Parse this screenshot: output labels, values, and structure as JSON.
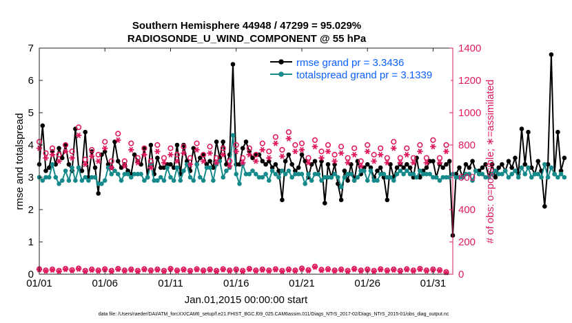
{
  "colors": {
    "rmse": "#000000",
    "spread": "#168a8a",
    "obs": "#e0185f",
    "legend_text": "#0b5fff",
    "axis": "#222222"
  },
  "icons": {
    "rmse_marker": "filled-circle-marker",
    "spread_marker": "filled-circle-marker",
    "possible_marker": "open-circle-marker",
    "assimilated_marker": "asterisk-marker"
  },
  "chart_data": {
    "type": "line",
    "title": "Southern Hemisphere 44948 / 47299 = 95.029%",
    "subtitle": "RADIOSONDE_U_WIND_COMPONENT @ 55 hPa",
    "xlabel": "Jan.01,2015 00:00:00 start",
    "ylabel_left": "rmse and totalspread",
    "ylabel_right": "# of obs: o=possible; ∗=assimilated",
    "xlim": [
      1,
      32.5
    ],
    "ylim_left": [
      0,
      7
    ],
    "ylim_right": [
      0,
      1400
    ],
    "x_ticks": [
      1,
      6,
      11,
      16,
      21,
      26,
      31
    ],
    "x_tick_labels": [
      "01/01",
      "01/06",
      "01/11",
      "01/16",
      "01/21",
      "01/26",
      "01/31"
    ],
    "y_ticks_left": [
      "0",
      "1",
      "2",
      "3",
      "4",
      "5",
      "6",
      "7"
    ],
    "y_ticks_right": [
      "0",
      "200",
      "400",
      "600",
      "800",
      "1000",
      "1200",
      "1400"
    ],
    "grid": false,
    "legend_position": "top-right",
    "legend": [
      {
        "name": "rmse",
        "label": "rmse grand pr = 3.3436"
      },
      {
        "name": "totalspread",
        "label": "totalspread grand pr = 3.1339"
      }
    ],
    "series": [
      {
        "name": "rmse",
        "axis": "left",
        "start_day": 1.0,
        "step_days": 0.25,
        "values": [
          3.4,
          4.6,
          3.2,
          3.3,
          3.8,
          3.4,
          3.9,
          3.6,
          4.0,
          3.4,
          3.2,
          4.5,
          3.3,
          3.2,
          4.4,
          3.0,
          3.8,
          3.3,
          2.5,
          3.7,
          3.8,
          3.4,
          3.3,
          4.1,
          3.5,
          3.3,
          3.4,
          3.2,
          3.1,
          3.7,
          3.5,
          3.4,
          3.9,
          3.0,
          4.0,
          3.1,
          3.6,
          3.3,
          3.3,
          3.4,
          3.4,
          3.3,
          4.0,
          3.1,
          4.0,
          3.5,
          3.2,
          3.9,
          3.4,
          3.6,
          3.7,
          3.4,
          3.5,
          3.3,
          4.1,
          3.6,
          4.1,
          3.4,
          3.7,
          6.5,
          3.4,
          3.4,
          3.9,
          4.1,
          3.8,
          3.6,
          3.7,
          3.7,
          3.5,
          3.4,
          3.5,
          3.3,
          3.4,
          3.2,
          2.3,
          3.5,
          3.7,
          3.4,
          3.2,
          3.3,
          3.7,
          3.5,
          3.0,
          3.4,
          3.5,
          3.1,
          3.5,
          2.2,
          3.4,
          3.0,
          3.4,
          2.8,
          2.3,
          3.2,
          2.9,
          3.4,
          2.9,
          3.5,
          3.1,
          3.3,
          3.4,
          3.3,
          3.0,
          3.2,
          3.3,
          3.0,
          2.3,
          3.4,
          3.0,
          3.3,
          3.4,
          3.3,
          3.4,
          3.3,
          3.0,
          3.6,
          3.0,
          3.2,
          3.3,
          3.5,
          3.5,
          3.0,
          3.4,
          3.3,
          3.4,
          3.5,
          1.2,
          3.1,
          3.3,
          3.0,
          3.4,
          3.3,
          3.5,
          3.2,
          3.2,
          3.3,
          3.4,
          3.0,
          3.4,
          3.0,
          3.3,
          3.4,
          3.2,
          3.5,
          3.3,
          3.6,
          3.1,
          4.5,
          3.4,
          4.4,
          3.3,
          3.1,
          3.5,
          3.2,
          2.1,
          3.4,
          6.8,
          3.1,
          4.4,
          3.2,
          3.6
        ]
      },
      {
        "name": "totalspread",
        "axis": "left",
        "start_day": 1.0,
        "step_days": 0.25,
        "values": [
          3.0,
          2.9,
          3.0,
          3.0,
          3.4,
          3.0,
          2.8,
          2.9,
          3.2,
          2.9,
          3.3,
          2.9,
          3.3,
          2.9,
          3.0,
          2.9,
          3.0,
          3.0,
          2.8,
          2.8,
          2.9,
          3.3,
          3.1,
          3.2,
          3.1,
          2.9,
          3.1,
          3.1,
          3.0,
          3.1,
          3.1,
          3.1,
          2.9,
          3.0,
          3.4,
          2.9,
          2.9,
          3.0,
          2.9,
          3.3,
          3.0,
          2.9,
          3.3,
          2.9,
          3.2,
          3.4,
          3.0,
          2.9,
          3.4,
          3.0,
          2.9,
          3.3,
          3.3,
          2.9,
          3.4,
          3.5,
          3.0,
          3.2,
          3.3,
          4.3,
          3.1,
          2.8,
          3.4,
          3.1,
          3.1,
          3.2,
          3.1,
          3.0,
          3.0,
          3.1,
          2.9,
          3.2,
          3.1,
          3.0,
          3.2,
          3.1,
          3.2,
          3.0,
          3.1,
          3.1,
          3.1,
          2.8,
          3.1,
          2.9,
          3.1,
          3.1,
          2.9,
          3.0,
          3.0,
          3.0,
          3.1,
          3.0,
          2.7,
          3.0,
          3.1,
          3.1,
          2.9,
          3.0,
          3.2,
          3.2,
          2.9,
          3.2,
          2.9,
          2.9,
          3.1,
          3.1,
          3.0,
          3.0,
          2.9,
          3.1,
          3.2,
          3.1,
          3.2,
          3.1,
          3.1,
          3.0,
          3.2,
          3.1,
          3.1,
          3.1,
          3.0,
          3.0,
          2.9,
          3.0,
          3.0,
          3.0,
          3.1,
          3.0,
          3.0,
          3.0,
          3.1,
          3.1,
          2.9,
          3.2,
          3.1,
          3.1,
          3.0,
          3.0,
          3.1,
          3.2,
          3.1,
          3.1,
          3.2,
          3.0,
          3.1,
          3.2,
          3.0,
          3.3,
          3.1,
          3.3,
          3.0,
          3.1,
          3.1,
          3.0,
          3.4,
          3.0,
          3.3,
          3.1,
          3.0,
          3.1,
          3.0
        ]
      },
      {
        "name": "possible",
        "axis": "right",
        "marker": "open-circle",
        "x": [
          1.0,
          1.5,
          2.0,
          2.5,
          3.0,
          3.5,
          4.0,
          4.5,
          5.0,
          5.5,
          6.0,
          6.5,
          7.0,
          7.5,
          8.0,
          8.5,
          9.0,
          9.5,
          10.0,
          10.5,
          11.0,
          11.5,
          12.0,
          12.5,
          13.0,
          13.5,
          14.0,
          14.5,
          15.0,
          15.5,
          16.0,
          16.5,
          17.0,
          17.5,
          18.0,
          18.5,
          19.0,
          19.5,
          20.0,
          20.5,
          21.0,
          21.5,
          22.0,
          22.5,
          23.0,
          23.5,
          24.0,
          24.5,
          25.0,
          25.5,
          26.0,
          26.5,
          27.0,
          27.5,
          28.0,
          28.5,
          29.0,
          29.5,
          30.0,
          30.5,
          31.0,
          31.5,
          32.0
        ],
        "values": [
          820,
          750,
          780,
          740,
          800,
          760,
          910,
          710,
          770,
          740,
          820,
          700,
          870,
          700,
          810,
          720,
          780,
          700,
          800,
          720,
          780,
          740,
          790,
          720,
          810,
          740,
          790,
          720,
          780,
          700,
          800,
          720,
          780,
          740,
          810,
          760,
          850,
          770,
          880,
          800,
          810,
          720,
          830,
          760,
          800,
          740,
          790,
          720,
          780,
          700,
          800,
          740,
          780,
          720,
          820,
          720,
          780,
          720,
          800,
          720,
          830,
          720,
          800
        ]
      },
      {
        "name": "assimilated",
        "axis": "right",
        "marker": "asterisk",
        "x": [
          1.0,
          1.5,
          2.0,
          2.5,
          3.0,
          3.5,
          4.0,
          4.5,
          5.0,
          5.5,
          6.0,
          6.5,
          7.0,
          7.5,
          8.0,
          8.5,
          9.0,
          9.5,
          10.0,
          10.5,
          11.0,
          11.5,
          12.0,
          12.5,
          13.0,
          13.5,
          14.0,
          14.5,
          15.0,
          15.5,
          16.0,
          16.5,
          17.0,
          17.5,
          18.0,
          18.5,
          19.0,
          19.5,
          20.0,
          20.5,
          21.0,
          21.5,
          22.0,
          22.5,
          23.0,
          23.5,
          24.0,
          24.5,
          25.0,
          25.5,
          26.0,
          26.5,
          27.0,
          27.5,
          28.0,
          28.5,
          29.0,
          29.5,
          30.0,
          30.5,
          31.0,
          31.5,
          32.0
        ],
        "values": [
          780,
          720,
          740,
          700,
          760,
          720,
          860,
          680,
          730,
          700,
          780,
          660,
          830,
          670,
          770,
          690,
          740,
          660,
          760,
          690,
          740,
          700,
          750,
          680,
          770,
          700,
          750,
          690,
          740,
          670,
          760,
          690,
          740,
          700,
          770,
          720,
          810,
          730,
          840,
          760,
          770,
          690,
          790,
          720,
          760,
          700,
          750,
          690,
          740,
          670,
          760,
          700,
          740,
          690,
          780,
          690,
          740,
          690,
          760,
          690,
          790,
          690,
          760
        ]
      },
      {
        "name": "bottom-possible",
        "axis": "right",
        "marker": "open-circle",
        "x": [
          1.0,
          1.5,
          2.0,
          2.5,
          3.0,
          3.5,
          4.0,
          4.5,
          5.0,
          5.5,
          6.0,
          6.5,
          7.0,
          7.5,
          8.0,
          8.5,
          9.0,
          9.5,
          10.0,
          10.5,
          11.0,
          11.5,
          12.0,
          12.5,
          13.0,
          13.5,
          14.0,
          14.5,
          15.0,
          15.5,
          16.0,
          16.5,
          17.0,
          17.5,
          18.0,
          18.5,
          19.0,
          19.5,
          20.0,
          20.5,
          21.0,
          21.5,
          22.0,
          22.5,
          23.0,
          23.5,
          24.0,
          24.5,
          25.0,
          25.5,
          26.0,
          26.5,
          27.0,
          27.5,
          28.0,
          28.5,
          29.0,
          29.5,
          30.0,
          30.5,
          31.0,
          31.5,
          32.0
        ],
        "values": [
          32,
          24,
          30,
          22,
          34,
          26,
          36,
          22,
          30,
          24,
          32,
          22,
          34,
          24,
          30,
          22,
          32,
          24,
          30,
          22,
          34,
          24,
          30,
          22,
          32,
          24,
          30,
          22,
          32,
          24,
          30,
          22,
          34,
          24,
          30,
          24,
          32,
          22,
          30,
          24,
          36,
          26,
          48,
          28,
          32,
          24,
          30,
          22,
          34,
          24,
          30,
          22,
          32,
          24,
          30,
          22,
          32,
          24,
          34,
          24,
          30,
          26,
          14
        ]
      },
      {
        "name": "bottom-assimilated",
        "axis": "right",
        "marker": "asterisk",
        "x": [
          1.0,
          1.5,
          2.0,
          2.5,
          3.0,
          3.5,
          4.0,
          4.5,
          5.0,
          5.5,
          6.0,
          6.5,
          7.0,
          7.5,
          8.0,
          8.5,
          9.0,
          9.5,
          10.0,
          10.5,
          11.0,
          11.5,
          12.0,
          12.5,
          13.0,
          13.5,
          14.0,
          14.5,
          15.0,
          15.5,
          16.0,
          16.5,
          17.0,
          17.5,
          18.0,
          18.5,
          19.0,
          19.5,
          20.0,
          20.5,
          21.0,
          21.5,
          22.0,
          22.5,
          23.0,
          23.5,
          24.0,
          24.5,
          25.0,
          25.5,
          26.0,
          26.5,
          27.0,
          27.5,
          28.0,
          28.5,
          29.0,
          29.5,
          30.0,
          30.5,
          31.0,
          31.5,
          32.0
        ],
        "values": [
          28,
          20,
          26,
          18,
          30,
          22,
          32,
          18,
          26,
          20,
          28,
          18,
          30,
          20,
          26,
          18,
          28,
          20,
          26,
          18,
          30,
          20,
          26,
          18,
          28,
          20,
          26,
          18,
          28,
          20,
          26,
          18,
          30,
          20,
          26,
          20,
          28,
          18,
          26,
          20,
          32,
          22,
          44,
          24,
          28,
          20,
          26,
          18,
          30,
          20,
          26,
          18,
          28,
          20,
          26,
          18,
          28,
          20,
          30,
          20,
          26,
          22,
          10
        ]
      }
    ]
  },
  "footnote": "data file: /Users/raeder/DAI/ATM_forcXX/CAM6_setup/f.e21.FHIST_BGC.f09_025.CAM6assim.011/Diags_NTrS_2017-02/Diags_NTrS_2015-01/obs_diag_output.nc"
}
